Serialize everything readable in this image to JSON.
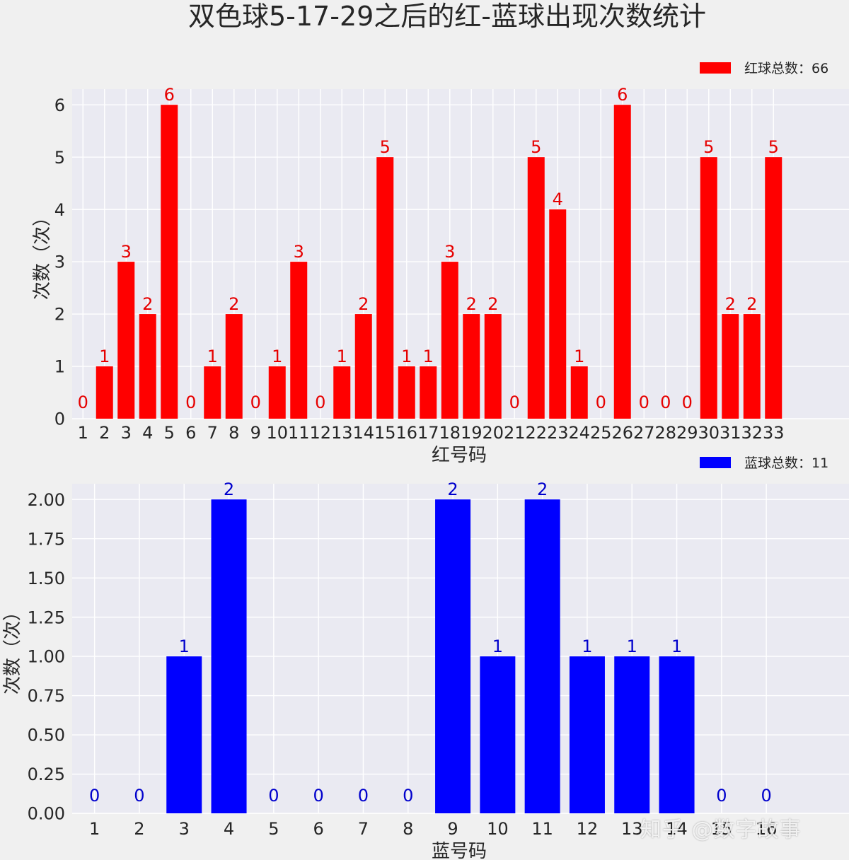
{
  "chart_data": {
    "title": "双色球5-17-29之后的红-蓝球出现次数统计",
    "panels": [
      {
        "id": "red",
        "type": "bar",
        "color": "#ff0000",
        "label_color": "#e60000",
        "categories": [
          "1",
          "2",
          "3",
          "4",
          "5",
          "6",
          "7",
          "8",
          "9",
          "10",
          "11",
          "12",
          "13",
          "14",
          "15",
          "16",
          "17",
          "18",
          "19",
          "20",
          "21",
          "22",
          "23",
          "24",
          "25",
          "26",
          "27",
          "28",
          "29",
          "30",
          "31",
          "32",
          "33"
        ],
        "values": [
          0,
          1,
          3,
          2,
          6,
          0,
          1,
          2,
          0,
          1,
          3,
          0,
          1,
          2,
          5,
          1,
          1,
          3,
          2,
          2,
          0,
          5,
          4,
          1,
          0,
          6,
          0,
          0,
          0,
          5,
          2,
          2,
          5
        ],
        "xlabel": "红号码",
        "ylabel": "次数（次）",
        "ylim": [
          0,
          6.3
        ],
        "yticks": [
          "0",
          "1",
          "2",
          "3",
          "4",
          "5",
          "6"
        ],
        "legend": "红球总数：66",
        "legend_position": "top-right",
        "grid": true
      },
      {
        "id": "blue",
        "type": "bar",
        "color": "#0000ff",
        "label_color": "#0000cc",
        "categories": [
          "1",
          "2",
          "3",
          "4",
          "5",
          "6",
          "7",
          "8",
          "9",
          "10",
          "11",
          "12",
          "13",
          "14",
          "15",
          "16"
        ],
        "values": [
          0,
          0,
          1,
          2,
          0,
          0,
          0,
          0,
          2,
          1,
          2,
          1,
          1,
          1,
          0,
          0
        ],
        "xlabel": "蓝号码",
        "ylabel": "次数（次）",
        "ylim": [
          0,
          2.1
        ],
        "yticks": [
          "0.00",
          "0.25",
          "0.50",
          "0.75",
          "1.00",
          "1.25",
          "1.50",
          "1.75",
          "2.00"
        ],
        "legend": "蓝球总数：11",
        "legend_position": "top-right",
        "grid": true
      }
    ]
  },
  "watermark": "知乎 @数字故事"
}
